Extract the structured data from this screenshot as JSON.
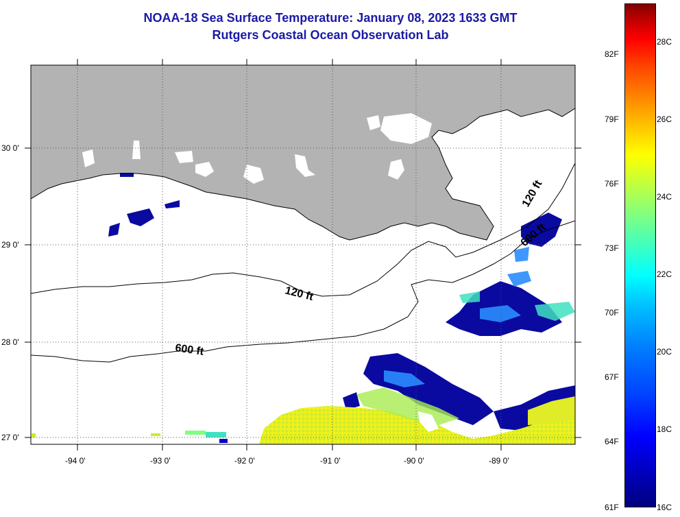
{
  "title": {
    "line1": "NOAA-18 Sea Surface Temperature:  January 08, 2023 1633 GMT",
    "line2": "Rutgers Coastal Ocean Observation Lab"
  },
  "y_axis_labels": [
    "30 0'",
    "29 0'",
    "28 0'",
    "27 0'"
  ],
  "x_axis_labels": [
    "-94 0'",
    "-93 0'",
    "-92 0'",
    "-91 0'",
    "-90 0'",
    "-89 0'"
  ],
  "contours": [
    {
      "depth": "120 ft"
    },
    {
      "depth": "600 ft"
    }
  ],
  "contour_labels": [
    "120 ft",
    "600 ft",
    "120 ft",
    "600 ft"
  ],
  "colorbar": {
    "fahrenheit_labels": [
      "82F",
      "79F",
      "76F",
      "73F",
      "70F",
      "67F",
      "64F",
      "61F"
    ],
    "celsius_labels": [
      "28C",
      "26C",
      "24C",
      "22C",
      "20C",
      "18C",
      "16C"
    ],
    "min_c": 16,
    "max_c": 29
  },
  "colors": {
    "title": "#1a1aa6",
    "land": "#b3b3b3",
    "water_no_data": "#ffffff",
    "cold": "#00008b",
    "warm": "#ffff00"
  }
}
